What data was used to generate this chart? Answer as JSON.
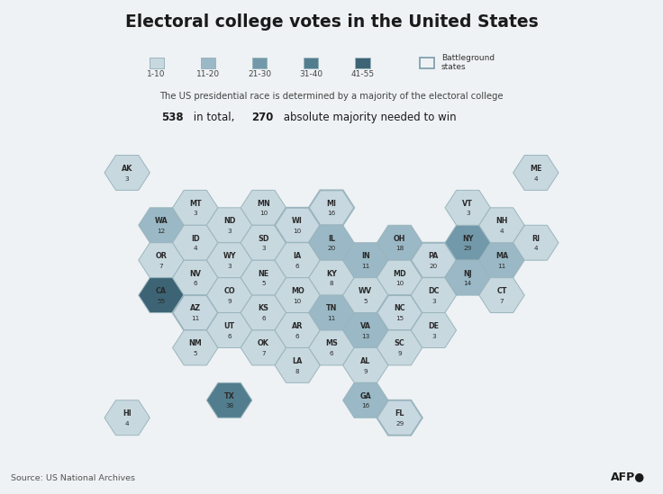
{
  "title": "Electoral college votes in the United States",
  "subtitle_line1": "The US presidential race is determined by a majority of the electoral college",
  "subtitle_line2_part1": "538",
  "subtitle_line2_mid": " in total, ",
  "subtitle_line2_part2": "270",
  "subtitle_line2_end": " absolute majority needed to win",
  "source": "Source: US National Archives",
  "legend_ranges": [
    "1-10",
    "11-20",
    "21-30",
    "31-40",
    "41-55"
  ],
  "background_color": "#eef2f4",
  "text_color": "#2a2a2a",
  "edge_color": "#9ab5be",
  "states": [
    {
      "abbr": "AK",
      "votes": 3,
      "col": 0,
      "row": 0,
      "battleground": false
    },
    {
      "abbr": "HI",
      "votes": 4,
      "col": 0,
      "row": 7,
      "battleground": false
    },
    {
      "abbr": "WA",
      "votes": 12,
      "col": 1,
      "row": 1,
      "battleground": false
    },
    {
      "abbr": "OR",
      "votes": 7,
      "col": 1,
      "row": 2,
      "battleground": false
    },
    {
      "abbr": "CA",
      "votes": 55,
      "col": 1,
      "row": 3,
      "battleground": false
    },
    {
      "abbr": "MT",
      "votes": 3,
      "col": 2,
      "row": 1,
      "battleground": false
    },
    {
      "abbr": "ID",
      "votes": 4,
      "col": 2,
      "row": 2,
      "battleground": false
    },
    {
      "abbr": "NV",
      "votes": 6,
      "col": 2,
      "row": 3,
      "battleground": false
    },
    {
      "abbr": "AZ",
      "votes": 11,
      "col": 2,
      "row": 4,
      "battleground": true
    },
    {
      "abbr": "NM",
      "votes": 5,
      "col": 2,
      "row": 5,
      "battleground": false
    },
    {
      "abbr": "ND",
      "votes": 3,
      "col": 3,
      "row": 1,
      "battleground": false
    },
    {
      "abbr": "WY",
      "votes": 3,
      "col": 3,
      "row": 2,
      "battleground": false
    },
    {
      "abbr": "CO",
      "votes": 9,
      "col": 3,
      "row": 3,
      "battleground": false
    },
    {
      "abbr": "UT",
      "votes": 6,
      "col": 3,
      "row": 4,
      "battleground": false
    },
    {
      "abbr": "TX",
      "votes": 38,
      "col": 3,
      "row": 6,
      "battleground": false
    },
    {
      "abbr": "MN",
      "votes": 10,
      "col": 4,
      "row": 1,
      "battleground": false
    },
    {
      "abbr": "SD",
      "votes": 3,
      "col": 4,
      "row": 2,
      "battleground": false
    },
    {
      "abbr": "NE",
      "votes": 5,
      "col": 4,
      "row": 3,
      "battleground": false
    },
    {
      "abbr": "KS",
      "votes": 6,
      "col": 4,
      "row": 4,
      "battleground": false
    },
    {
      "abbr": "OK",
      "votes": 7,
      "col": 4,
      "row": 5,
      "battleground": false
    },
    {
      "abbr": "WI",
      "votes": 10,
      "col": 5,
      "row": 1,
      "battleground": true
    },
    {
      "abbr": "IA",
      "votes": 6,
      "col": 5,
      "row": 2,
      "battleground": false
    },
    {
      "abbr": "MO",
      "votes": 10,
      "col": 5,
      "row": 3,
      "battleground": false
    },
    {
      "abbr": "AR",
      "votes": 6,
      "col": 5,
      "row": 4,
      "battleground": false
    },
    {
      "abbr": "LA",
      "votes": 8,
      "col": 5,
      "row": 5,
      "battleground": false
    },
    {
      "abbr": "MI",
      "votes": 16,
      "col": 6,
      "row": 1,
      "battleground": true
    },
    {
      "abbr": "IL",
      "votes": 20,
      "col": 6,
      "row": 2,
      "battleground": false
    },
    {
      "abbr": "KY",
      "votes": 8,
      "col": 6,
      "row": 3,
      "battleground": false
    },
    {
      "abbr": "TN",
      "votes": 11,
      "col": 6,
      "row": 4,
      "battleground": false
    },
    {
      "abbr": "MS",
      "votes": 6,
      "col": 6,
      "row": 5,
      "battleground": false
    },
    {
      "abbr": "IN",
      "votes": 11,
      "col": 7,
      "row": 2,
      "battleground": false
    },
    {
      "abbr": "WV",
      "votes": 5,
      "col": 7,
      "row": 3,
      "battleground": false
    },
    {
      "abbr": "VA",
      "votes": 13,
      "col": 7,
      "row": 4,
      "battleground": false
    },
    {
      "abbr": "AL",
      "votes": 9,
      "col": 7,
      "row": 5,
      "battleground": false
    },
    {
      "abbr": "GA",
      "votes": 16,
      "col": 7,
      "row": 6,
      "battleground": false
    },
    {
      "abbr": "OH",
      "votes": 18,
      "col": 8,
      "row": 2,
      "battleground": false
    },
    {
      "abbr": "MD",
      "votes": 10,
      "col": 8,
      "row": 3,
      "battleground": false
    },
    {
      "abbr": "NC",
      "votes": 15,
      "col": 8,
      "row": 4,
      "battleground": true
    },
    {
      "abbr": "SC",
      "votes": 9,
      "col": 8,
      "row": 5,
      "battleground": false
    },
    {
      "abbr": "FL",
      "votes": 29,
      "col": 8,
      "row": 7,
      "battleground": true
    },
    {
      "abbr": "PA",
      "votes": 20,
      "col": 9,
      "row": 2,
      "battleground": true
    },
    {
      "abbr": "DC",
      "votes": 3,
      "col": 9,
      "row": 3,
      "battleground": false
    },
    {
      "abbr": "DE",
      "votes": 3,
      "col": 9,
      "row": 4,
      "battleground": false
    },
    {
      "abbr": "NY",
      "votes": 29,
      "col": 10,
      "row": 2,
      "battleground": false
    },
    {
      "abbr": "NJ",
      "votes": 14,
      "col": 10,
      "row": 3,
      "battleground": false
    },
    {
      "abbr": "VT",
      "votes": 3,
      "col": 10,
      "row": 1,
      "battleground": false
    },
    {
      "abbr": "MA",
      "votes": 11,
      "col": 11,
      "row": 2,
      "battleground": false
    },
    {
      "abbr": "CT",
      "votes": 7,
      "col": 11,
      "row": 3,
      "battleground": false
    },
    {
      "abbr": "NH",
      "votes": 4,
      "col": 11,
      "row": 1,
      "battleground": false
    },
    {
      "abbr": "RI",
      "votes": 4,
      "col": 12,
      "row": 2,
      "battleground": false
    },
    {
      "abbr": "ME",
      "votes": 4,
      "col": 12,
      "row": 0,
      "battleground": false
    }
  ]
}
